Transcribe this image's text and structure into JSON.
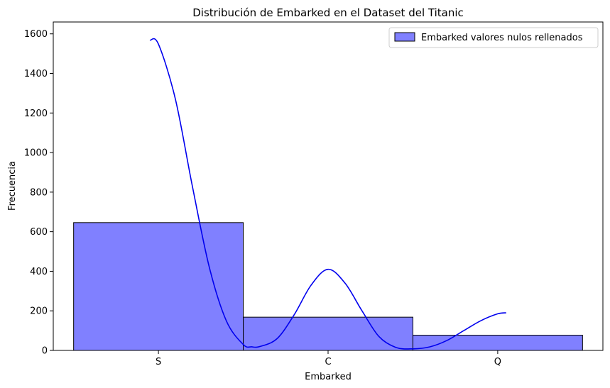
{
  "chart_data": {
    "type": "bar",
    "title": "Distribución de Embarked en el Dataset del Titanic",
    "xlabel": "Embarked",
    "ylabel": "Frecuencia",
    "categories": [
      "S",
      "C",
      "Q"
    ],
    "series": [
      {
        "name": "Embarked valores nulos rellenados",
        "values": [
          646,
          168,
          77
        ]
      }
    ],
    "kde_curve": {
      "x": [
        -0.05,
        0.0,
        0.1,
        0.2,
        0.3,
        0.4,
        0.5,
        0.55,
        0.6,
        0.7,
        0.8,
        0.9,
        1.0,
        1.1,
        1.2,
        1.3,
        1.4,
        1.5,
        1.6,
        1.7,
        1.8,
        1.9,
        2.0,
        2.05
      ],
      "y": [
        1568,
        1548,
        1270,
        830,
        420,
        150,
        30,
        18,
        20,
        60,
        180,
        330,
        410,
        340,
        200,
        70,
        15,
        8,
        18,
        50,
        100,
        150,
        185,
        190
      ]
    },
    "ylim": [
      0,
      1660
    ],
    "yticks": [
      0,
      200,
      400,
      600,
      800,
      1000,
      1200,
      1400,
      1600
    ],
    "grid": false,
    "legend_position": "top-right",
    "colors": {
      "bar_fill": "#8080ff",
      "bar_edge": "#000000",
      "kde_line": "#0000ee"
    }
  }
}
